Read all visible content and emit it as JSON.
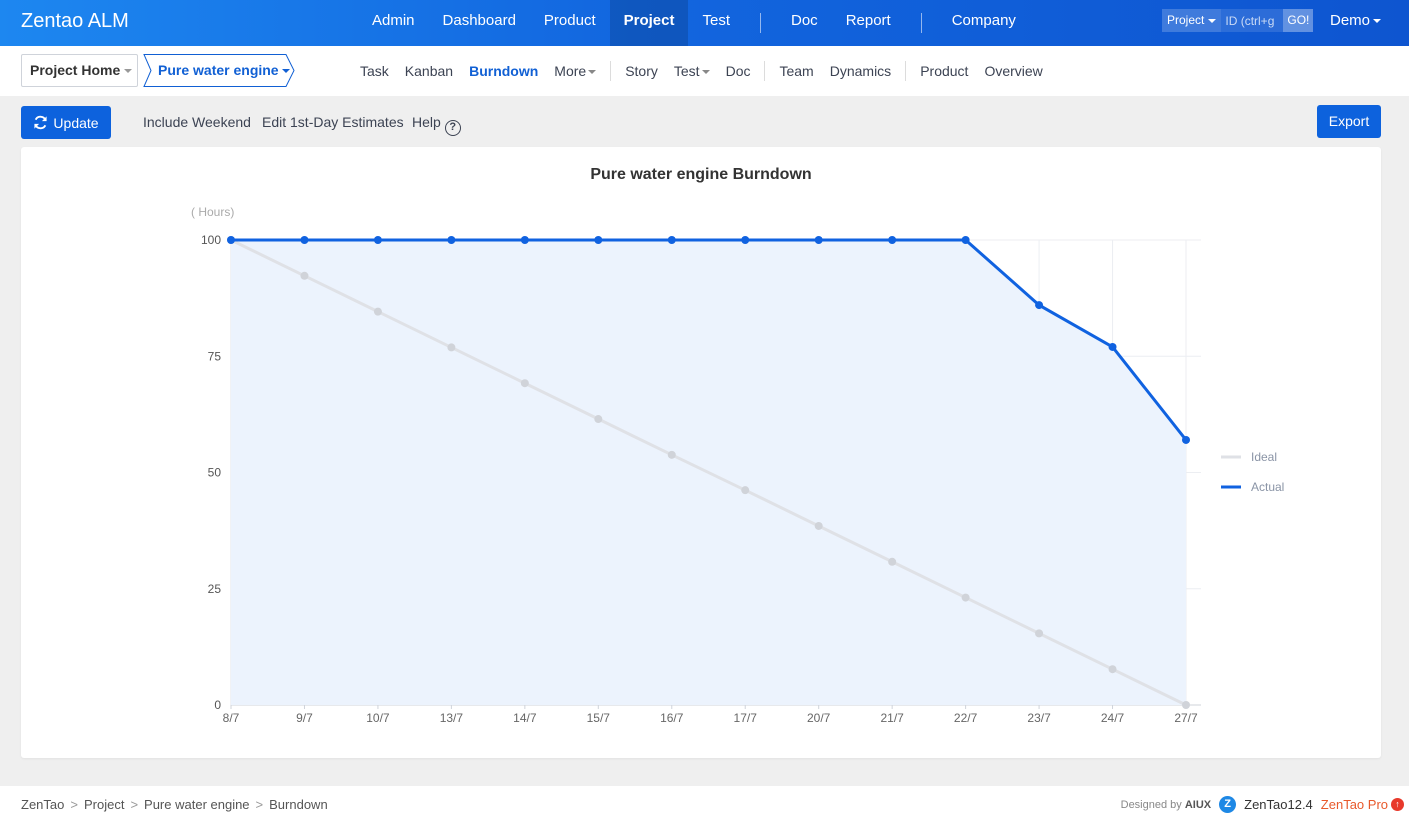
{
  "header": {
    "brand": "Zentao ALM",
    "nav": [
      {
        "label": "Admin",
        "active": false
      },
      {
        "label": "Dashboard",
        "active": false
      },
      {
        "label": "Product",
        "active": false
      },
      {
        "label": "Project",
        "active": true
      },
      {
        "label": "Test",
        "active": false
      },
      {
        "label": "Doc",
        "active": false
      },
      {
        "label": "Report",
        "active": false
      },
      {
        "label": "Company",
        "active": false
      }
    ],
    "search": {
      "type_label": "Project",
      "placeholder": "ID (ctrl+g",
      "go_label": "GO!"
    },
    "user": "Demo"
  },
  "subheader": {
    "crumb_home": "Project Home",
    "crumb_project": "Pure water engine",
    "nav": [
      {
        "label": "Task"
      },
      {
        "label": "Kanban"
      },
      {
        "label": "Burndown",
        "active": true
      },
      {
        "label": "More",
        "dropdown": true
      },
      {
        "label": "Story"
      },
      {
        "label": "Test",
        "dropdown": true
      },
      {
        "label": "Doc"
      },
      {
        "label": "Team"
      },
      {
        "label": "Dynamics"
      },
      {
        "label": "Product"
      },
      {
        "label": "Overview"
      }
    ]
  },
  "toolbar": {
    "update_label": "Update",
    "include_weekend": "Include Weekend",
    "edit_estimates": "Edit 1st-Day Estimates",
    "help_label": "Help",
    "export_label": "Export"
  },
  "chart_data": {
    "type": "line",
    "title": "Pure water engine Burndown",
    "ylabel": "( Hours)",
    "xlabel": "",
    "x": [
      "8/7",
      "9/7",
      "10/7",
      "13/7",
      "14/7",
      "15/7",
      "16/7",
      "17/7",
      "20/7",
      "21/7",
      "22/7",
      "23/7",
      "24/7",
      "27/7"
    ],
    "ylim": [
      0,
      100
    ],
    "yticks": [
      0,
      25,
      50,
      75,
      100
    ],
    "grid": true,
    "legend_position": "right",
    "series": [
      {
        "name": "Ideal",
        "color": "#dfe1e6",
        "values": [
          100,
          92.3,
          84.6,
          76.9,
          69.2,
          61.5,
          53.8,
          46.2,
          38.5,
          30.8,
          23.1,
          15.4,
          7.7,
          0
        ]
      },
      {
        "name": "Actual",
        "color": "#1062e0",
        "values": [
          100,
          100,
          100,
          100,
          100,
          100,
          100,
          100,
          100,
          100,
          100,
          86,
          77,
          57
        ],
        "fill": "#ecf3fd"
      }
    ]
  },
  "footer": {
    "crumbs": [
      "ZenTao",
      "Project",
      "Pure water engine",
      "Burndown"
    ],
    "designed_by": "Designed by",
    "designer": "AIUX",
    "version": "ZenTao12.4",
    "pro": "ZenTao Pro"
  }
}
